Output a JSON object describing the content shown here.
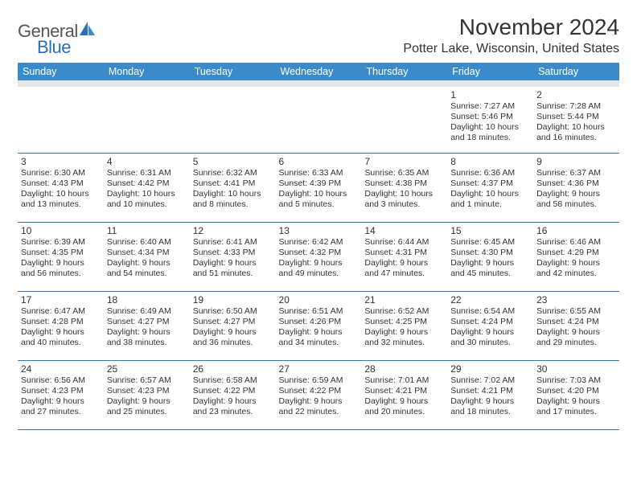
{
  "brand": {
    "general": "General",
    "blue": "Blue"
  },
  "title": "November 2024",
  "location": "Potter Lake, Wisconsin, United States",
  "colors": {
    "header_bg": "#3b8bca",
    "header_shadow": "#e6e6e6",
    "row_border": "#3b7aa8",
    "logo_blue": "#2a6fb5"
  },
  "day_headers": [
    "Sunday",
    "Monday",
    "Tuesday",
    "Wednesday",
    "Thursday",
    "Friday",
    "Saturday"
  ],
  "weeks": [
    [
      null,
      null,
      null,
      null,
      null,
      {
        "n": "1",
        "sunrise": "Sunrise: 7:27 AM",
        "sunset": "Sunset: 5:46 PM",
        "day1": "Daylight: 10 hours",
        "day2": "and 18 minutes."
      },
      {
        "n": "2",
        "sunrise": "Sunrise: 7:28 AM",
        "sunset": "Sunset: 5:44 PM",
        "day1": "Daylight: 10 hours",
        "day2": "and 16 minutes."
      }
    ],
    [
      {
        "n": "3",
        "sunrise": "Sunrise: 6:30 AM",
        "sunset": "Sunset: 4:43 PM",
        "day1": "Daylight: 10 hours",
        "day2": "and 13 minutes."
      },
      {
        "n": "4",
        "sunrise": "Sunrise: 6:31 AM",
        "sunset": "Sunset: 4:42 PM",
        "day1": "Daylight: 10 hours",
        "day2": "and 10 minutes."
      },
      {
        "n": "5",
        "sunrise": "Sunrise: 6:32 AM",
        "sunset": "Sunset: 4:41 PM",
        "day1": "Daylight: 10 hours",
        "day2": "and 8 minutes."
      },
      {
        "n": "6",
        "sunrise": "Sunrise: 6:33 AM",
        "sunset": "Sunset: 4:39 PM",
        "day1": "Daylight: 10 hours",
        "day2": "and 5 minutes."
      },
      {
        "n": "7",
        "sunrise": "Sunrise: 6:35 AM",
        "sunset": "Sunset: 4:38 PM",
        "day1": "Daylight: 10 hours",
        "day2": "and 3 minutes."
      },
      {
        "n": "8",
        "sunrise": "Sunrise: 6:36 AM",
        "sunset": "Sunset: 4:37 PM",
        "day1": "Daylight: 10 hours",
        "day2": "and 1 minute."
      },
      {
        "n": "9",
        "sunrise": "Sunrise: 6:37 AM",
        "sunset": "Sunset: 4:36 PM",
        "day1": "Daylight: 9 hours",
        "day2": "and 58 minutes."
      }
    ],
    [
      {
        "n": "10",
        "sunrise": "Sunrise: 6:39 AM",
        "sunset": "Sunset: 4:35 PM",
        "day1": "Daylight: 9 hours",
        "day2": "and 56 minutes."
      },
      {
        "n": "11",
        "sunrise": "Sunrise: 6:40 AM",
        "sunset": "Sunset: 4:34 PM",
        "day1": "Daylight: 9 hours",
        "day2": "and 54 minutes."
      },
      {
        "n": "12",
        "sunrise": "Sunrise: 6:41 AM",
        "sunset": "Sunset: 4:33 PM",
        "day1": "Daylight: 9 hours",
        "day2": "and 51 minutes."
      },
      {
        "n": "13",
        "sunrise": "Sunrise: 6:42 AM",
        "sunset": "Sunset: 4:32 PM",
        "day1": "Daylight: 9 hours",
        "day2": "and 49 minutes."
      },
      {
        "n": "14",
        "sunrise": "Sunrise: 6:44 AM",
        "sunset": "Sunset: 4:31 PM",
        "day1": "Daylight: 9 hours",
        "day2": "and 47 minutes."
      },
      {
        "n": "15",
        "sunrise": "Sunrise: 6:45 AM",
        "sunset": "Sunset: 4:30 PM",
        "day1": "Daylight: 9 hours",
        "day2": "and 45 minutes."
      },
      {
        "n": "16",
        "sunrise": "Sunrise: 6:46 AM",
        "sunset": "Sunset: 4:29 PM",
        "day1": "Daylight: 9 hours",
        "day2": "and 42 minutes."
      }
    ],
    [
      {
        "n": "17",
        "sunrise": "Sunrise: 6:47 AM",
        "sunset": "Sunset: 4:28 PM",
        "day1": "Daylight: 9 hours",
        "day2": "and 40 minutes."
      },
      {
        "n": "18",
        "sunrise": "Sunrise: 6:49 AM",
        "sunset": "Sunset: 4:27 PM",
        "day1": "Daylight: 9 hours",
        "day2": "and 38 minutes."
      },
      {
        "n": "19",
        "sunrise": "Sunrise: 6:50 AM",
        "sunset": "Sunset: 4:27 PM",
        "day1": "Daylight: 9 hours",
        "day2": "and 36 minutes."
      },
      {
        "n": "20",
        "sunrise": "Sunrise: 6:51 AM",
        "sunset": "Sunset: 4:26 PM",
        "day1": "Daylight: 9 hours",
        "day2": "and 34 minutes."
      },
      {
        "n": "21",
        "sunrise": "Sunrise: 6:52 AM",
        "sunset": "Sunset: 4:25 PM",
        "day1": "Daylight: 9 hours",
        "day2": "and 32 minutes."
      },
      {
        "n": "22",
        "sunrise": "Sunrise: 6:54 AM",
        "sunset": "Sunset: 4:24 PM",
        "day1": "Daylight: 9 hours",
        "day2": "and 30 minutes."
      },
      {
        "n": "23",
        "sunrise": "Sunrise: 6:55 AM",
        "sunset": "Sunset: 4:24 PM",
        "day1": "Daylight: 9 hours",
        "day2": "and 29 minutes."
      }
    ],
    [
      {
        "n": "24",
        "sunrise": "Sunrise: 6:56 AM",
        "sunset": "Sunset: 4:23 PM",
        "day1": "Daylight: 9 hours",
        "day2": "and 27 minutes."
      },
      {
        "n": "25",
        "sunrise": "Sunrise: 6:57 AM",
        "sunset": "Sunset: 4:23 PM",
        "day1": "Daylight: 9 hours",
        "day2": "and 25 minutes."
      },
      {
        "n": "26",
        "sunrise": "Sunrise: 6:58 AM",
        "sunset": "Sunset: 4:22 PM",
        "day1": "Daylight: 9 hours",
        "day2": "and 23 minutes."
      },
      {
        "n": "27",
        "sunrise": "Sunrise: 6:59 AM",
        "sunset": "Sunset: 4:22 PM",
        "day1": "Daylight: 9 hours",
        "day2": "and 22 minutes."
      },
      {
        "n": "28",
        "sunrise": "Sunrise: 7:01 AM",
        "sunset": "Sunset: 4:21 PM",
        "day1": "Daylight: 9 hours",
        "day2": "and 20 minutes."
      },
      {
        "n": "29",
        "sunrise": "Sunrise: 7:02 AM",
        "sunset": "Sunset: 4:21 PM",
        "day1": "Daylight: 9 hours",
        "day2": "and 18 minutes."
      },
      {
        "n": "30",
        "sunrise": "Sunrise: 7:03 AM",
        "sunset": "Sunset: 4:20 PM",
        "day1": "Daylight: 9 hours",
        "day2": "and 17 minutes."
      }
    ]
  ]
}
